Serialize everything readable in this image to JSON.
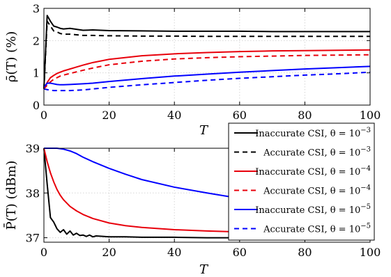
{
  "chart_data": [
    {
      "type": "line",
      "xlabel": "T",
      "ylabel": "ρ̄(T) (%)",
      "xlim": [
        0,
        100
      ],
      "ylim": [
        0,
        3
      ],
      "xticks": [
        "0",
        "20",
        "40",
        "60",
        "80",
        "100"
      ],
      "yticks": [
        "0",
        "1",
        "2",
        "3"
      ],
      "grid": true,
      "series": [
        {
          "name": "Inaccurate CSI, θ = 10^-3",
          "color": "#000000",
          "dash": "solid",
          "x": [
            0,
            1,
            2,
            3,
            4,
            5,
            6,
            8,
            10,
            12,
            15,
            20,
            30,
            40,
            50,
            60,
            70,
            80,
            90,
            100
          ],
          "y": [
            0.5,
            2.78,
            2.6,
            2.45,
            2.42,
            2.38,
            2.36,
            2.38,
            2.35,
            2.32,
            2.33,
            2.31,
            2.3,
            2.29,
            2.29,
            2.29,
            2.28,
            2.28,
            2.28,
            2.28
          ]
        },
        {
          "name": "Accurate CSI, θ = 10^-3",
          "color": "#000000",
          "dash": "dashed",
          "x": [
            0,
            1,
            2,
            3,
            4,
            5,
            6,
            8,
            10,
            12,
            15,
            20,
            30,
            40,
            50,
            60,
            70,
            80,
            90,
            100
          ],
          "y": [
            0.5,
            2.6,
            2.45,
            2.3,
            2.27,
            2.22,
            2.2,
            2.2,
            2.18,
            2.16,
            2.16,
            2.15,
            2.14,
            2.14,
            2.13,
            2.13,
            2.13,
            2.13,
            2.13,
            2.13
          ]
        },
        {
          "name": "Inaccurate CSI, θ = 10^-4",
          "color": "#e8000b",
          "dash": "solid",
          "x": [
            0,
            1,
            2,
            3,
            4,
            5,
            6,
            8,
            10,
            12,
            15,
            20,
            30,
            40,
            50,
            60,
            70,
            80,
            90,
            100
          ],
          "y": [
            0.5,
            0.7,
            0.85,
            0.92,
            0.98,
            1.02,
            1.06,
            1.12,
            1.18,
            1.24,
            1.32,
            1.42,
            1.53,
            1.59,
            1.63,
            1.66,
            1.68,
            1.69,
            1.7,
            1.71
          ]
        },
        {
          "name": "Accurate CSI, θ = 10^-4",
          "color": "#e8000b",
          "dash": "dashed",
          "x": [
            0,
            1,
            2,
            3,
            4,
            5,
            6,
            8,
            10,
            12,
            15,
            20,
            30,
            40,
            50,
            60,
            70,
            80,
            90,
            100
          ],
          "y": [
            0.5,
            0.62,
            0.72,
            0.8,
            0.85,
            0.9,
            0.93,
            0.98,
            1.03,
            1.08,
            1.15,
            1.25,
            1.36,
            1.43,
            1.47,
            1.5,
            1.52,
            1.54,
            1.55,
            1.56
          ]
        },
        {
          "name": "Inaccurate CSI, θ = 10^-5",
          "color": "#0000ff",
          "dash": "solid",
          "x": [
            0,
            1,
            2,
            3,
            4,
            5,
            6,
            8,
            10,
            12,
            15,
            20,
            30,
            40,
            50,
            60,
            70,
            80,
            90,
            100
          ],
          "y": [
            0.55,
            0.68,
            0.68,
            0.66,
            0.64,
            0.63,
            0.63,
            0.64,
            0.65,
            0.66,
            0.68,
            0.73,
            0.82,
            0.9,
            0.96,
            1.02,
            1.07,
            1.12,
            1.16,
            1.2
          ]
        },
        {
          "name": "Accurate CSI, θ = 10^-5",
          "color": "#0000ff",
          "dash": "dashed",
          "x": [
            0,
            1,
            2,
            3,
            4,
            5,
            6,
            8,
            10,
            12,
            15,
            20,
            30,
            40,
            50,
            60,
            70,
            80,
            90,
            100
          ],
          "y": [
            0.5,
            0.48,
            0.46,
            0.45,
            0.45,
            0.45,
            0.45,
            0.45,
            0.46,
            0.47,
            0.5,
            0.55,
            0.63,
            0.7,
            0.77,
            0.83,
            0.88,
            0.93,
            0.97,
            1.02
          ]
        }
      ]
    },
    {
      "type": "line",
      "xlabel": "T",
      "ylabel": "P̄(T) (dBm)",
      "xlim": [
        0,
        100
      ],
      "ylim": [
        36.9,
        39
      ],
      "xticks": [
        "0",
        "20",
        "40",
        "60",
        "80",
        "100"
      ],
      "yticks": [
        "37",
        "38",
        "39"
      ],
      "grid": true,
      "series": [
        {
          "name": "Inaccurate CSI, θ = 10^-3",
          "color": "#000000",
          "dash": "solid",
          "x": [
            0,
            1,
            2,
            3,
            4,
            5,
            6,
            7,
            8,
            9,
            10,
            11,
            12,
            13,
            14,
            15,
            16,
            18,
            20,
            25,
            30,
            40,
            50,
            60,
            70,
            80,
            90,
            100
          ],
          "y": [
            39,
            38.2,
            37.45,
            37.35,
            37.2,
            37.12,
            37.18,
            37.08,
            37.15,
            37.06,
            37.1,
            37.05,
            37.06,
            37.03,
            37.06,
            37.02,
            37.04,
            37.03,
            37.02,
            37.02,
            37.01,
            37.01,
            37.0,
            37.0,
            37.0,
            37.0,
            37.0,
            37.0
          ]
        },
        {
          "name": "Inaccurate CSI, θ = 10^-4",
          "color": "#e8000b",
          "dash": "solid",
          "x": [
            0,
            1,
            2,
            3,
            4,
            5,
            6,
            8,
            10,
            12,
            15,
            20,
            25,
            30,
            40,
            50,
            60,
            70,
            80,
            90,
            100
          ],
          "y": [
            39,
            38.7,
            38.45,
            38.25,
            38.08,
            37.95,
            37.85,
            37.7,
            37.6,
            37.52,
            37.43,
            37.33,
            37.27,
            37.23,
            37.18,
            37.15,
            37.13,
            37.11,
            37.1,
            37.09,
            37.08
          ]
        },
        {
          "name": "Inaccurate CSI, θ = 10^-5",
          "color": "#0000ff",
          "dash": "solid",
          "x": [
            0,
            2,
            4,
            6,
            8,
            10,
            12,
            15,
            20,
            25,
            30,
            40,
            50,
            60,
            65
          ],
          "y": [
            39,
            39,
            39,
            38.98,
            38.94,
            38.88,
            38.8,
            38.7,
            38.55,
            38.42,
            38.3,
            38.13,
            38.0,
            37.88,
            37.84
          ]
        }
      ]
    }
  ],
  "legend": {
    "placement": "right",
    "entries": [
      {
        "text": "Inaccurate CSI, θ = 10",
        "exp": "−3",
        "color": "#000000",
        "dash": "solid"
      },
      {
        "text": "Accurate CSI, θ = 10",
        "exp": "−3",
        "color": "#000000",
        "dash": "dashed"
      },
      {
        "text": "Inaccurate CSI, θ = 10",
        "exp": "−4",
        "color": "#e8000b",
        "dash": "solid"
      },
      {
        "text": "Accurate CSI, θ = 10",
        "exp": "−4",
        "color": "#e8000b",
        "dash": "dashed"
      },
      {
        "text": "Inaccurate CSI, θ = 10",
        "exp": "−5",
        "color": "#0000ff",
        "dash": "solid"
      },
      {
        "text": "Accurate CSI, θ = 10",
        "exp": "−5",
        "color": "#0000ff",
        "dash": "dashed"
      }
    ]
  }
}
